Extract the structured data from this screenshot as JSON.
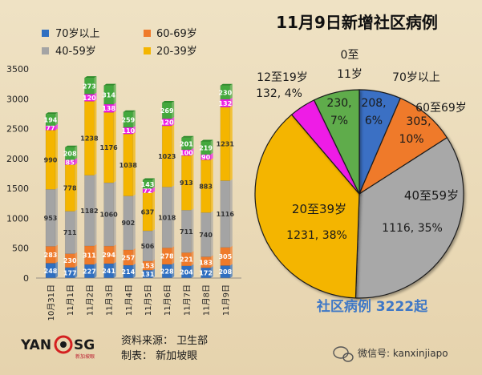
{
  "chart_data": [
    {
      "type": "bar",
      "stacked": true,
      "categories": [
        "10月31日",
        "11月1日",
        "11月2日",
        "11月3日",
        "11月4日",
        "11月5日",
        "11月6日",
        "11月7日",
        "11月8日",
        "11月9日"
      ],
      "series": [
        {
          "name": "70岁以上",
          "color": "#2f6fc1",
          "values": [
            248,
            177,
            227,
            241,
            214,
            131,
            228,
            204,
            172,
            208
          ]
        },
        {
          "name": "60-69岁",
          "color": "#ef7a2a",
          "values": [
            283,
            230,
            311,
            294,
            257,
            153,
            278,
            221,
            183,
            305
          ]
        },
        {
          "name": "40-59岁",
          "color": "#a4a4a4",
          "values": [
            953,
            711,
            1182,
            1060,
            902,
            506,
            1018,
            711,
            740,
            1116
          ]
        },
        {
          "name": "20-39岁",
          "color": "#f4b500",
          "values": [
            990,
            778,
            1238,
            1176,
            1038,
            637,
            1023,
            913,
            883,
            1231
          ]
        },
        {
          "name": "12至19岁",
          "color": "#ee1de6",
          "values": [
            77,
            85,
            120,
            138,
            110,
            72,
            120,
            100,
            90,
            132
          ]
        },
        {
          "name": "0至11岁",
          "color": "#43a83d",
          "values": [
            194,
            208,
            273,
            314,
            259,
            143,
            269,
            201,
            219,
            230
          ]
        }
      ],
      "ylim": [
        0,
        3500
      ],
      "yticks": [
        0,
        500,
        1000,
        1500,
        2000,
        2500,
        3000,
        3500
      ],
      "legend_position": "top-left",
      "grid": false
    },
    {
      "type": "pie",
      "title": "11月9日新增社区病例",
      "subtitle": "社区病例 3222起",
      "slices": [
        {
          "label": "70岁以上",
          "value": 208,
          "value_label": "208, 6%",
          "color": "#3a6fc4"
        },
        {
          "label": "60至69岁",
          "value": 305,
          "value_label": "305, 10%",
          "color": "#ef7a2a"
        },
        {
          "label": "40至59岁",
          "value": 1116,
          "value_label": "1116, 35%",
          "color": "#a8a8a8"
        },
        {
          "label": "20至39岁",
          "value": 1231,
          "value_label": "1231, 38%",
          "color": "#f4b500"
        },
        {
          "label": "12至19岁",
          "value": 132,
          "value_label": "132, 4%",
          "color": "#ee1de6"
        },
        {
          "label": "0至11岁",
          "value": 230,
          "value_label": "230, 7%",
          "color": "#5fac4c"
        }
      ]
    }
  ],
  "legend_labels": [
    "70岁以上",
    "60-69岁",
    "40-59岁",
    "20-39岁"
  ],
  "pie_labels": {
    "age70": "70岁以上",
    "age60": "60至69岁",
    "age40": "40至59岁",
    "age20": "20至39岁",
    "age12": "12至19岁",
    "age0_line1": "0至",
    "age0_line2": "11岁"
  },
  "source": {
    "line1": "资料来源： 卫生部",
    "line2": "制表： 新加坡眼"
  },
  "logo": {
    "left": "YAN",
    "right": "SG",
    "sub": "新加坡眼"
  },
  "watermark": "微信号: kanxinjiapo"
}
